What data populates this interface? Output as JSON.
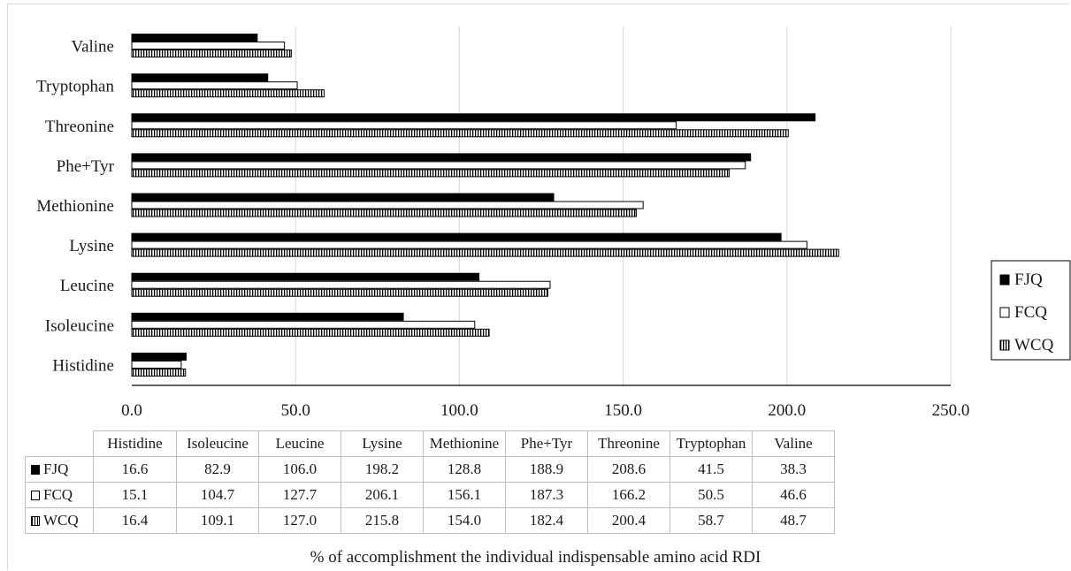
{
  "chart_data": {
    "type": "bar",
    "orientation": "horizontal",
    "categories": [
      "Valine",
      "Tryptophan",
      "Threonine",
      "Phe+Tyr",
      "Methionine",
      "Lysine",
      "Leucine",
      "Isoleucine",
      "Histidine"
    ],
    "series": [
      {
        "name": "FJQ",
        "fill": "solid",
        "values": [
          38.3,
          41.5,
          208.6,
          188.9,
          128.8,
          198.2,
          106.0,
          82.9,
          16.6
        ]
      },
      {
        "name": "FCQ",
        "fill": "outline",
        "values": [
          46.6,
          50.5,
          166.2,
          187.3,
          156.1,
          206.1,
          127.7,
          104.7,
          15.1
        ]
      },
      {
        "name": "WCQ",
        "fill": "striped",
        "values": [
          48.7,
          58.7,
          200.4,
          182.4,
          154.0,
          215.8,
          127.0,
          109.1,
          16.4
        ]
      }
    ],
    "xlim": [
      0,
      250
    ],
    "xticks": [
      "0.0",
      "50.0",
      "100.0",
      "150.0",
      "200.0",
      "250.0"
    ],
    "xlabel": "% of accomplishment the individual indispensable amino acid RDI",
    "ylabel": "",
    "title": "",
    "grid": "vertical",
    "legend": "right",
    "colors": {
      "bar": "#000000",
      "grid": "#d9d9d9",
      "axis": "#000000"
    }
  },
  "table": {
    "columns": [
      "Histidine",
      "Isoleucine",
      "Leucine",
      "Lysine",
      "Methionine",
      "Phe+Tyr",
      "Threonine",
      "Tryptophan",
      "Valine"
    ],
    "rows": [
      {
        "label": "FJQ",
        "key": "fjq",
        "values": [
          "16.6",
          "82.9",
          "106.0",
          "198.2",
          "128.8",
          "188.9",
          "208.6",
          "41.5",
          "38.3"
        ]
      },
      {
        "label": "FCQ",
        "key": "fcq",
        "values": [
          "15.1",
          "104.7",
          "127.7",
          "206.1",
          "156.1",
          "187.3",
          "166.2",
          "50.5",
          "46.6"
        ]
      },
      {
        "label": "WCQ",
        "key": "wcq",
        "values": [
          "16.4",
          "109.1",
          "127.0",
          "215.8",
          "154.0",
          "182.4",
          "200.4",
          "58.7",
          "48.7"
        ]
      }
    ]
  }
}
